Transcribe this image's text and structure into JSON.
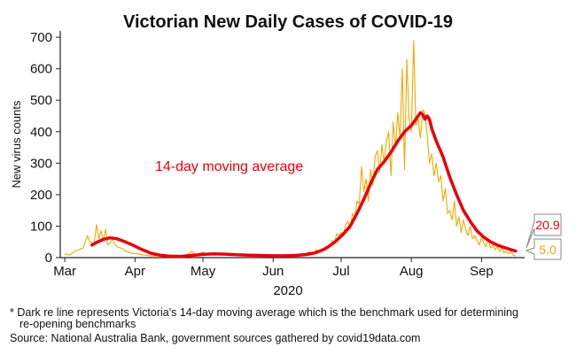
{
  "chart_data": {
    "type": "line",
    "title": "Victorian New Daily Cases of COVID-19",
    "ylabel": "New virus counts",
    "xlabel": "2020",
    "ylim": [
      0,
      720
    ],
    "yticks": [
      0,
      100,
      200,
      300,
      400,
      500,
      600,
      700
    ],
    "xticks": [
      {
        "label": "Mar",
        "date": "2020-03-01"
      },
      {
        "label": "Apr",
        "date": "2020-04-01"
      },
      {
        "label": "May",
        "date": "2020-05-01"
      },
      {
        "label": "Jun",
        "date": "2020-06-01"
      },
      {
        "label": "Jul",
        "date": "2020-07-01"
      },
      {
        "label": "Aug",
        "date": "2020-08-01"
      },
      {
        "label": "Sep",
        "date": "2020-09-01"
      }
    ],
    "xrange": [
      "2020-02-28",
      "2020-09-20"
    ],
    "grid": false,
    "annotation": {
      "text": "14-day moving average",
      "color": "#e8000b"
    },
    "series": [
      {
        "key": "daily",
        "color": "#f2a900",
        "points": [
          [
            "2020-03-01",
            12
          ],
          [
            "2020-03-03",
            8
          ],
          [
            "2020-03-05",
            18
          ],
          [
            "2020-03-07",
            25
          ],
          [
            "2020-03-09",
            30
          ],
          [
            "2020-03-11",
            70
          ],
          [
            "2020-03-12",
            50
          ],
          [
            "2020-03-14",
            45
          ],
          [
            "2020-03-15",
            105
          ],
          [
            "2020-03-16",
            60
          ],
          [
            "2020-03-17",
            85
          ],
          [
            "2020-03-18",
            55
          ],
          [
            "2020-03-19",
            90
          ],
          [
            "2020-03-20",
            40
          ],
          [
            "2020-03-22",
            55
          ],
          [
            "2020-03-24",
            35
          ],
          [
            "2020-03-26",
            30
          ],
          [
            "2020-03-28",
            20
          ],
          [
            "2020-03-30",
            15
          ],
          [
            "2020-04-02",
            12
          ],
          [
            "2020-04-05",
            8
          ],
          [
            "2020-04-08",
            6
          ],
          [
            "2020-04-11",
            5
          ],
          [
            "2020-04-14",
            3
          ],
          [
            "2020-04-17",
            6
          ],
          [
            "2020-04-20",
            4
          ],
          [
            "2020-04-23",
            5
          ],
          [
            "2020-04-26",
            20
          ],
          [
            "2020-04-28",
            8
          ],
          [
            "2020-05-01",
            18
          ],
          [
            "2020-05-03",
            10
          ],
          [
            "2020-05-06",
            15
          ],
          [
            "2020-05-09",
            12
          ],
          [
            "2020-05-12",
            9
          ],
          [
            "2020-05-15",
            10
          ],
          [
            "2020-05-18",
            6
          ],
          [
            "2020-05-22",
            7
          ],
          [
            "2020-05-26",
            5
          ],
          [
            "2020-05-30",
            4
          ],
          [
            "2020-06-03",
            3
          ],
          [
            "2020-06-07",
            6
          ],
          [
            "2020-06-11",
            8
          ],
          [
            "2020-06-14",
            10
          ],
          [
            "2020-06-17",
            18
          ],
          [
            "2020-06-19",
            14
          ],
          [
            "2020-06-20",
            25
          ],
          [
            "2020-06-22",
            20
          ],
          [
            "2020-06-24",
            35
          ],
          [
            "2020-06-26",
            33
          ],
          [
            "2020-06-27",
            55
          ],
          [
            "2020-06-28",
            45
          ],
          [
            "2020-06-29",
            75
          ],
          [
            "2020-06-30",
            70
          ],
          [
            "2020-07-01",
            80
          ],
          [
            "2020-07-02",
            75
          ],
          [
            "2020-07-03",
            105
          ],
          [
            "2020-07-04",
            115
          ],
          [
            "2020-07-05",
            90
          ],
          [
            "2020-07-06",
            140
          ],
          [
            "2020-07-07",
            125
          ],
          [
            "2020-07-08",
            180
          ],
          [
            "2020-07-09",
            170
          ],
          [
            "2020-07-10",
            290
          ],
          [
            "2020-07-11",
            210
          ],
          [
            "2020-07-12",
            250
          ],
          [
            "2020-07-13",
            180
          ],
          [
            "2020-07-14",
            280
          ],
          [
            "2020-07-15",
            230
          ],
          [
            "2020-07-16",
            320
          ],
          [
            "2020-07-17",
            340
          ],
          [
            "2020-07-18",
            270
          ],
          [
            "2020-07-19",
            360
          ],
          [
            "2020-07-20",
            300
          ],
          [
            "2020-07-21",
            370
          ],
          [
            "2020-07-22",
            400
          ],
          [
            "2020-07-23",
            260
          ],
          [
            "2020-07-24",
            430
          ],
          [
            "2020-07-25",
            350
          ],
          [
            "2020-07-26",
            460
          ],
          [
            "2020-07-27",
            380
          ],
          [
            "2020-07-28",
            600
          ],
          [
            "2020-07-29",
            280
          ],
          [
            "2020-07-30",
            630
          ],
          [
            "2020-07-31",
            440
          ],
          [
            "2020-08-01",
            400
          ],
          [
            "2020-08-02",
            690
          ],
          [
            "2020-08-03",
            420
          ],
          [
            "2020-08-04",
            440
          ],
          [
            "2020-08-05",
            380
          ],
          [
            "2020-08-06",
            470
          ],
          [
            "2020-08-07",
            460
          ],
          [
            "2020-08-08",
            390
          ],
          [
            "2020-08-09",
            300
          ],
          [
            "2020-08-10",
            330
          ],
          [
            "2020-08-11",
            260
          ],
          [
            "2020-08-12",
            300
          ],
          [
            "2020-08-13",
            240
          ],
          [
            "2020-08-14",
            260
          ],
          [
            "2020-08-15",
            180
          ],
          [
            "2020-08-16",
            220
          ],
          [
            "2020-08-17",
            140
          ],
          [
            "2020-08-18",
            150
          ],
          [
            "2020-08-19",
            120
          ],
          [
            "2020-08-20",
            180
          ],
          [
            "2020-08-21",
            100
          ],
          [
            "2020-08-22",
            130
          ],
          [
            "2020-08-23",
            80
          ],
          [
            "2020-08-24",
            120
          ],
          [
            "2020-08-25",
            90
          ],
          [
            "2020-08-26",
            70
          ],
          [
            "2020-08-27",
            100
          ],
          [
            "2020-08-28",
            60
          ],
          [
            "2020-08-29",
            70
          ],
          [
            "2020-08-30",
            55
          ],
          [
            "2020-08-31",
            40
          ],
          [
            "2020-09-01",
            65
          ],
          [
            "2020-09-02",
            45
          ],
          [
            "2020-09-03",
            35
          ],
          [
            "2020-09-04",
            60
          ],
          [
            "2020-09-05",
            30
          ],
          [
            "2020-09-06",
            40
          ],
          [
            "2020-09-07",
            25
          ],
          [
            "2020-09-08",
            35
          ],
          [
            "2020-09-09",
            20
          ],
          [
            "2020-09-10",
            30
          ],
          [
            "2020-09-11",
            15
          ],
          [
            "2020-09-12",
            20
          ],
          [
            "2020-09-13",
            12
          ],
          [
            "2020-09-14",
            18
          ],
          [
            "2020-09-15",
            8
          ],
          [
            "2020-09-16",
            5
          ]
        ],
        "last_value_label": "5.0"
      },
      {
        "key": "average",
        "color": "#e8000b",
        "points": [
          [
            "2020-03-13",
            40
          ],
          [
            "2020-03-15",
            48
          ],
          [
            "2020-03-18",
            58
          ],
          [
            "2020-03-21",
            63
          ],
          [
            "2020-03-24",
            60
          ],
          [
            "2020-03-27",
            52
          ],
          [
            "2020-03-31",
            40
          ],
          [
            "2020-04-04",
            26
          ],
          [
            "2020-04-08",
            14
          ],
          [
            "2020-04-12",
            8
          ],
          [
            "2020-04-16",
            5
          ],
          [
            "2020-04-21",
            4
          ],
          [
            "2020-04-26",
            7
          ],
          [
            "2020-05-01",
            10
          ],
          [
            "2020-05-06",
            12
          ],
          [
            "2020-05-11",
            11
          ],
          [
            "2020-05-16",
            9
          ],
          [
            "2020-05-21",
            8
          ],
          [
            "2020-05-26",
            7
          ],
          [
            "2020-06-01",
            6
          ],
          [
            "2020-06-06",
            6
          ],
          [
            "2020-06-11",
            7
          ],
          [
            "2020-06-16",
            10
          ],
          [
            "2020-06-20",
            16
          ],
          [
            "2020-06-24",
            28
          ],
          [
            "2020-06-28",
            48
          ],
          [
            "2020-07-02",
            75
          ],
          [
            "2020-07-05",
            100
          ],
          [
            "2020-07-08",
            140
          ],
          [
            "2020-07-11",
            185
          ],
          [
            "2020-07-14",
            235
          ],
          [
            "2020-07-17",
            280
          ],
          [
            "2020-07-20",
            305
          ],
          [
            "2020-07-23",
            335
          ],
          [
            "2020-07-26",
            370
          ],
          [
            "2020-07-29",
            400
          ],
          [
            "2020-08-01",
            420
          ],
          [
            "2020-08-03",
            440
          ],
          [
            "2020-08-05",
            460
          ],
          [
            "2020-08-06",
            455
          ],
          [
            "2020-08-07",
            440
          ],
          [
            "2020-08-08",
            450
          ],
          [
            "2020-08-09",
            440
          ],
          [
            "2020-08-10",
            410
          ],
          [
            "2020-08-12",
            370
          ],
          [
            "2020-08-15",
            320
          ],
          [
            "2020-08-18",
            255
          ],
          [
            "2020-08-21",
            200
          ],
          [
            "2020-08-24",
            150
          ],
          [
            "2020-08-27",
            115
          ],
          [
            "2020-08-30",
            85
          ],
          [
            "2020-09-02",
            65
          ],
          [
            "2020-09-05",
            50
          ],
          [
            "2020-09-08",
            40
          ],
          [
            "2020-09-11",
            32
          ],
          [
            "2020-09-14",
            25
          ],
          [
            "2020-09-16",
            21
          ]
        ],
        "last_value_label": "20.9"
      }
    ]
  },
  "footnote_lines": [
    "* Dark re line represents Victoria's 14-day moving average which is the benchmark used for determining",
    "re-opening benchmarks"
  ],
  "source": "Source: National Australia Bank, government sources gathered by covid19data.com"
}
